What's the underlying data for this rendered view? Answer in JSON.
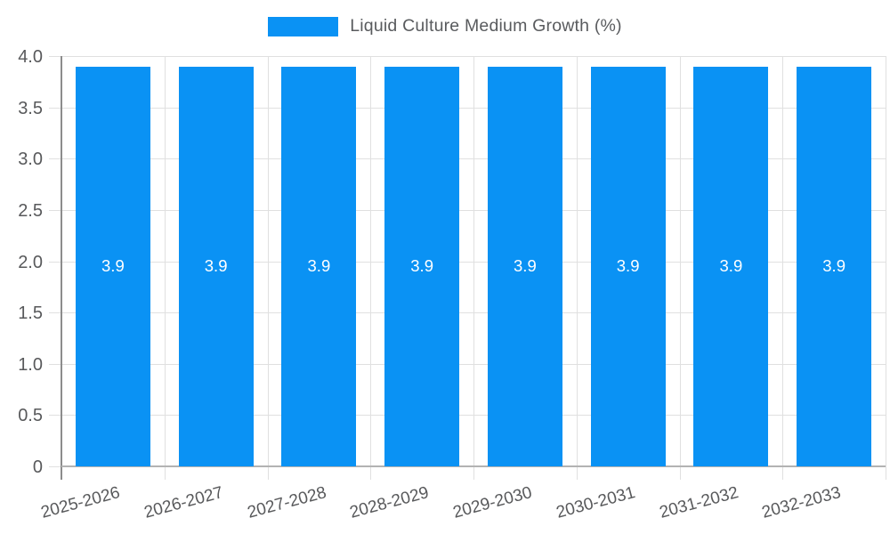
{
  "chart_data": {
    "type": "bar",
    "title": "Liquid Culture Medium Growth (%)",
    "categories": [
      "2025-2026",
      "2026-2027",
      "2027-2028",
      "2028-2029",
      "2029-2030",
      "2030-2031",
      "2031-2032",
      "2032-2033"
    ],
    "values": [
      3.9,
      3.9,
      3.9,
      3.9,
      3.9,
      3.9,
      3.9,
      3.9
    ],
    "bar_labels": [
      "3.9",
      "3.9",
      "3.9",
      "3.9",
      "3.9",
      "3.9",
      "3.9",
      "3.9"
    ],
    "xlabel": "",
    "ylabel": "",
    "ylim": [
      0,
      4
    ],
    "yticks": [
      {
        "value": 0,
        "label": "0"
      },
      {
        "value": 0.5,
        "label": "0.5"
      },
      {
        "value": 1,
        "label": "1.0"
      },
      {
        "value": 1.5,
        "label": "1.5"
      },
      {
        "value": 2,
        "label": "2.0"
      },
      {
        "value": 2.5,
        "label": "2.5"
      },
      {
        "value": 3,
        "label": "3.0"
      },
      {
        "value": 3.5,
        "label": "3.5"
      },
      {
        "value": 4,
        "label": "4.0"
      }
    ],
    "grid": true,
    "legend_position": "top",
    "legend_entries": [
      "Liquid Culture Medium Growth (%)"
    ],
    "colors": {
      "bar": "#0a92f4",
      "grid_line": "#e0e0e0",
      "y_axis_line": "#8c8c8c",
      "x_axis_line": "#b3b3b3",
      "tick_text": "#58595b",
      "legend_text": "#595b5e",
      "bar_value_text": "#ffffff",
      "background": "#ffffff"
    }
  }
}
